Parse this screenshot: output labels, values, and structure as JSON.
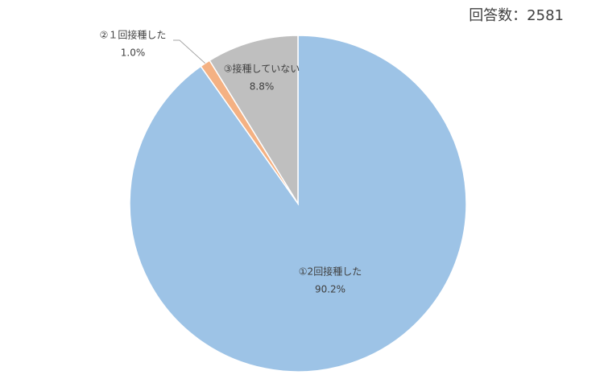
{
  "chart_data": {
    "type": "pie",
    "annotation": "回答数：2581",
    "categories": [
      "①2回接種した",
      "②１回接種した",
      "③接種していない"
    ],
    "values": [
      90.2,
      1.0,
      8.8
    ],
    "value_labels": [
      "90.2%",
      "1.0%",
      "8.8%"
    ],
    "colors": [
      "#9dc3e6",
      "#f4b183",
      "#bfbfbf"
    ]
  }
}
